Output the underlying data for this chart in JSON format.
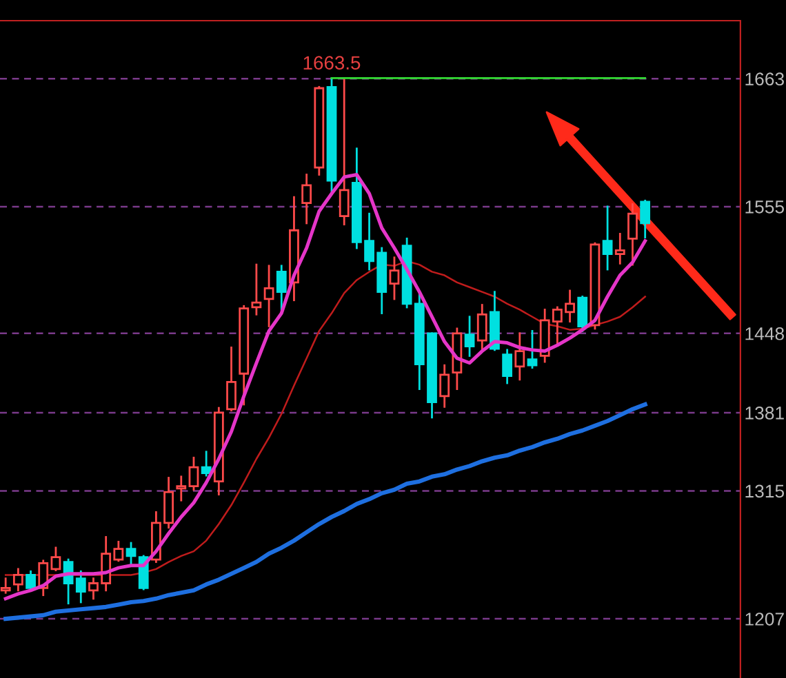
{
  "chart_data": {
    "type": "candlestick",
    "categories": [
      null,
      null,
      null,
      null,
      null,
      null,
      null,
      null,
      null,
      null,
      null,
      null,
      null,
      null,
      null,
      null,
      null,
      null,
      null,
      null,
      null,
      null,
      null,
      null,
      null,
      null,
      null,
      null,
      null,
      null,
      null,
      null,
      null,
      null,
      null,
      null,
      null,
      null,
      null,
      null,
      null,
      null,
      null,
      null,
      null,
      null,
      null,
      null,
      null,
      null,
      null,
      null
    ],
    "ohlc": [
      [
        1231,
        1241,
        1229,
        1233
      ],
      [
        1236,
        1249,
        1231,
        1244
      ],
      [
        1244,
        1247,
        1231,
        1233
      ],
      [
        1233,
        1256,
        1227,
        1254
      ],
      [
        1249,
        1267,
        1248,
        1259
      ],
      [
        1255,
        1257,
        1220,
        1237
      ],
      [
        1241,
        1247,
        1221,
        1230
      ],
      [
        1231,
        1241,
        1224,
        1237
      ],
      [
        1237,
        1276,
        1231,
        1262
      ],
      [
        1257,
        1272,
        1256,
        1266
      ],
      [
        1266,
        1271,
        1252,
        1260
      ],
      [
        1259,
        1260,
        1232,
        1233
      ],
      [
        1257,
        1297,
        1255,
        1288
      ],
      [
        1288,
        1326,
        1284,
        1314
      ],
      [
        1317,
        1327,
        1307,
        1319
      ],
      [
        1319,
        1343,
        1316,
        1335
      ],
      [
        1335,
        1348,
        1328,
        1330
      ],
      [
        1323,
        1385,
        1312,
        1381
      ],
      [
        1384,
        1436,
        1383,
        1407
      ],
      [
        1414,
        1471,
        1388,
        1469
      ],
      [
        1470,
        1506,
        1464,
        1474
      ],
      [
        1477,
        1505,
        1454,
        1486
      ],
      [
        1500,
        1505,
        1468,
        1483
      ],
      [
        1491,
        1563,
        1476,
        1535
      ],
      [
        1558,
        1582,
        1541,
        1573
      ],
      [
        1588,
        1656,
        1582,
        1655
      ],
      [
        1656,
        1663.5,
        1566,
        1577
      ],
      [
        1547,
        1662,
        1540,
        1569
      ],
      [
        1575,
        1604,
        1520,
        1525
      ],
      [
        1526,
        1549,
        1502,
        1509
      ],
      [
        1516,
        1520,
        1465,
        1483
      ],
      [
        1490,
        1512,
        1477,
        1501
      ],
      [
        1522,
        1528,
        1470,
        1473
      ],
      [
        1473,
        1483,
        1401,
        1422
      ],
      [
        1448,
        1448,
        1377,
        1390
      ],
      [
        1395,
        1421,
        1386,
        1413
      ],
      [
        1415,
        1452,
        1401,
        1448
      ],
      [
        1447,
        1462,
        1429,
        1437
      ],
      [
        1442,
        1472,
        1433,
        1464
      ],
      [
        1466,
        1483,
        1434,
        1435
      ],
      [
        1430,
        1434,
        1406,
        1412
      ],
      [
        1420,
        1448,
        1409,
        1433
      ],
      [
        1426,
        1450,
        1419,
        1421
      ],
      [
        1429,
        1468,
        1424,
        1459
      ],
      [
        1458,
        1470,
        1438,
        1468
      ],
      [
        1466,
        1484,
        1458,
        1473
      ],
      [
        1478,
        1479,
        1450,
        1454
      ],
      [
        1455,
        1524,
        1452,
        1523
      ],
      [
        1526,
        1555,
        1502,
        1515
      ],
      [
        1515,
        1532,
        1507,
        1518
      ],
      [
        1528,
        1557,
        1506,
        1549
      ],
      [
        1559,
        1560,
        1529,
        1541
      ]
    ],
    "colors": [
      "#ff4a4a",
      "#ff4a4a",
      "#00e0e0",
      "#ff4a4a",
      "#ff4a4a",
      "#00e0e0",
      "#00e0e0",
      "#ff4a4a",
      "#ff4a4a",
      "#ff4a4a",
      "#00e0e0",
      "#00e0e0",
      "#ff4a4a",
      "#ff4a4a",
      "#ff4a4a",
      "#ff4a4a",
      "#00e0e0",
      "#ff4a4a",
      "#ff4a4a",
      "#ff4a4a",
      "#ff4a4a",
      "#ff4a4a",
      "#00e0e0",
      "#ff4a4a",
      "#ff4a4a",
      "#ff4a4a",
      "#00e0e0",
      "#ff4a4a",
      "#00e0e0",
      "#00e0e0",
      "#00e0e0",
      "#ff4a4a",
      "#00e0e0",
      "#00e0e0",
      "#00e0e0",
      "#ff4a4a",
      "#ff4a4a",
      "#00e0e0",
      "#ff4a4a",
      "#00e0e0",
      "#00e0e0",
      "#ff4a4a",
      "#00e0e0",
      "#ff4a4a",
      "#ff4a4a",
      "#ff4a4a",
      "#00e0e0",
      "#ff4a4a",
      "#00e0e0",
      "#ff4a4a",
      "#ff4a4a",
      "#00e0e0"
    ],
    "series": [
      {
        "type": "line",
        "color": "#e535c8",
        "values": [
          1224,
          1228,
          1231,
          1235,
          1243,
          1245,
          1245,
          1245,
          1246,
          1250,
          1252,
          1252,
          1264,
          1279,
          1293,
          1305,
          1322,
          1342,
          1365,
          1395,
          1423,
          1450,
          1465,
          1497,
          1520,
          1551,
          1566,
          1580,
          1582,
          1566,
          1537,
          1520,
          1502,
          1483,
          1462,
          1441,
          1427,
          1423,
          1433,
          1441,
          1440,
          1436,
          1434,
          1433,
          1438,
          1444,
          1451,
          1459,
          1479,
          1497,
          1508,
          1526
        ]
      },
      {
        "type": "line",
        "color": "#c01c1c",
        "values": [
          1244,
          1244,
          1244,
          1244,
          1244,
          1244,
          1244,
          1244,
          1244,
          1244,
          1244,
          1246,
          1249,
          1255,
          1260,
          1264,
          1273,
          1287,
          1303,
          1322,
          1342,
          1360,
          1380,
          1404,
          1427,
          1450,
          1465,
          1482,
          1493,
          1500,
          1506,
          1505,
          1509,
          1506,
          1500,
          1497,
          1491,
          1487,
          1483,
          1479,
          1473,
          1468,
          1462,
          1456,
          1454,
          1451,
          1452,
          1455,
          1458,
          1462,
          1470,
          1479
        ]
      },
      {
        "type": "line",
        "color": "#1e6fe0",
        "values": [
          1207,
          1208,
          1209,
          1210,
          1213,
          1214,
          1215,
          1216,
          1217,
          1219,
          1221,
          1222,
          1224,
          1227,
          1229,
          1231,
          1236,
          1240,
          1245,
          1250,
          1255,
          1262,
          1267,
          1273,
          1280,
          1287,
          1293,
          1298,
          1304,
          1308,
          1313,
          1316,
          1321,
          1323,
          1327,
          1329,
          1333,
          1336,
          1340,
          1343,
          1345,
          1349,
          1352,
          1356,
          1359,
          1363,
          1366,
          1370,
          1374,
          1379,
          1384,
          1388
        ]
      }
    ],
    "ylim": [
      1157,
      1712
    ],
    "yticks": [
      1663,
      1555,
      1448,
      1381,
      1315,
      1207
    ],
    "ref_lines": [
      {
        "axis": "y",
        "value": 1663.5,
        "label": "1663.5",
        "color": "#33dd33"
      }
    ],
    "grid": "y",
    "tick_labels": "y"
  }
}
